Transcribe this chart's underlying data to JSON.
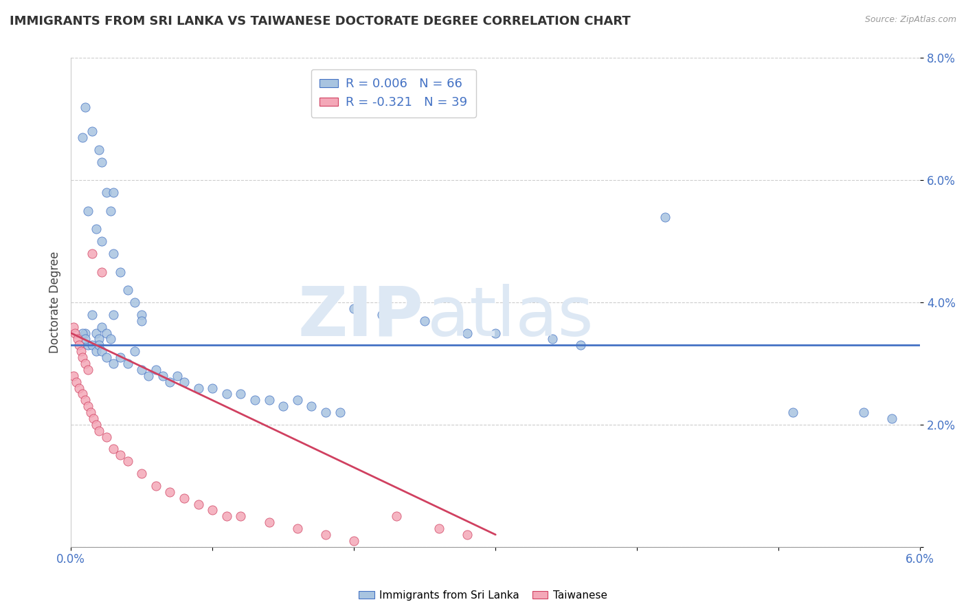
{
  "title": "IMMIGRANTS FROM SRI LANKA VS TAIWANESE DOCTORATE DEGREE CORRELATION CHART",
  "source": "Source: ZipAtlas.com",
  "ylabel": "Doctorate Degree",
  "xlim": [
    0.0,
    6.0
  ],
  "ylim": [
    0.0,
    8.0
  ],
  "legend1_r": "R = 0.006",
  "legend1_n": "N = 66",
  "legend2_r": "R = -0.321",
  "legend2_n": "N = 39",
  "blue_color": "#a8c4e0",
  "pink_color": "#f4a8b8",
  "blue_line_color": "#4472c4",
  "pink_line_color": "#d04060",
  "watermark_color": "#dde8f4",
  "blue_x": [
    0.1,
    0.12,
    0.15,
    0.18,
    0.2,
    0.22,
    0.25,
    0.28,
    0.08,
    0.1,
    0.15,
    0.2,
    0.22,
    0.25,
    0.28,
    0.3,
    0.12,
    0.18,
    0.22,
    0.3,
    0.35,
    0.4,
    0.45,
    0.5,
    0.08,
    0.1,
    0.15,
    0.18,
    0.2,
    0.22,
    0.25,
    0.3,
    0.35,
    0.4,
    0.45,
    0.5,
    0.55,
    0.6,
    0.65,
    0.7,
    0.75,
    0.8,
    0.9,
    1.0,
    1.1,
    1.2,
    1.3,
    1.4,
    1.5,
    1.6,
    1.7,
    1.8,
    1.9,
    2.0,
    2.2,
    2.5,
    2.8,
    3.0,
    3.4,
    3.6,
    4.2,
    5.1,
    5.6,
    5.8,
    0.3,
    0.5
  ],
  "blue_y": [
    3.5,
    3.3,
    3.8,
    3.5,
    3.4,
    3.6,
    3.5,
    3.4,
    6.7,
    7.2,
    6.8,
    6.5,
    6.3,
    5.8,
    5.5,
    5.8,
    5.5,
    5.2,
    5.0,
    4.8,
    4.5,
    4.2,
    4.0,
    3.8,
    3.5,
    3.4,
    3.3,
    3.2,
    3.3,
    3.2,
    3.1,
    3.0,
    3.1,
    3.0,
    3.2,
    2.9,
    2.8,
    2.9,
    2.8,
    2.7,
    2.8,
    2.7,
    2.6,
    2.6,
    2.5,
    2.5,
    2.4,
    2.4,
    2.3,
    2.4,
    2.3,
    2.2,
    2.2,
    3.9,
    3.8,
    3.7,
    3.5,
    3.5,
    3.4,
    3.3,
    5.4,
    2.2,
    2.2,
    2.1,
    3.8,
    3.7
  ],
  "pink_x": [
    0.02,
    0.03,
    0.05,
    0.06,
    0.07,
    0.08,
    0.1,
    0.12,
    0.02,
    0.04,
    0.06,
    0.08,
    0.1,
    0.12,
    0.14,
    0.16,
    0.18,
    0.2,
    0.25,
    0.3,
    0.35,
    0.4,
    0.5,
    0.6,
    0.7,
    0.8,
    0.9,
    1.0,
    1.1,
    1.2,
    1.4,
    1.6,
    1.8,
    2.0,
    2.3,
    2.6,
    2.8,
    0.15,
    0.22
  ],
  "pink_y": [
    3.6,
    3.5,
    3.4,
    3.3,
    3.2,
    3.1,
    3.0,
    2.9,
    2.8,
    2.7,
    2.6,
    2.5,
    2.4,
    2.3,
    2.2,
    2.1,
    2.0,
    1.9,
    1.8,
    1.6,
    1.5,
    1.4,
    1.2,
    1.0,
    0.9,
    0.8,
    0.7,
    0.6,
    0.5,
    0.5,
    0.4,
    0.3,
    0.2,
    0.1,
    0.5,
    0.3,
    0.2,
    4.8,
    4.5
  ]
}
